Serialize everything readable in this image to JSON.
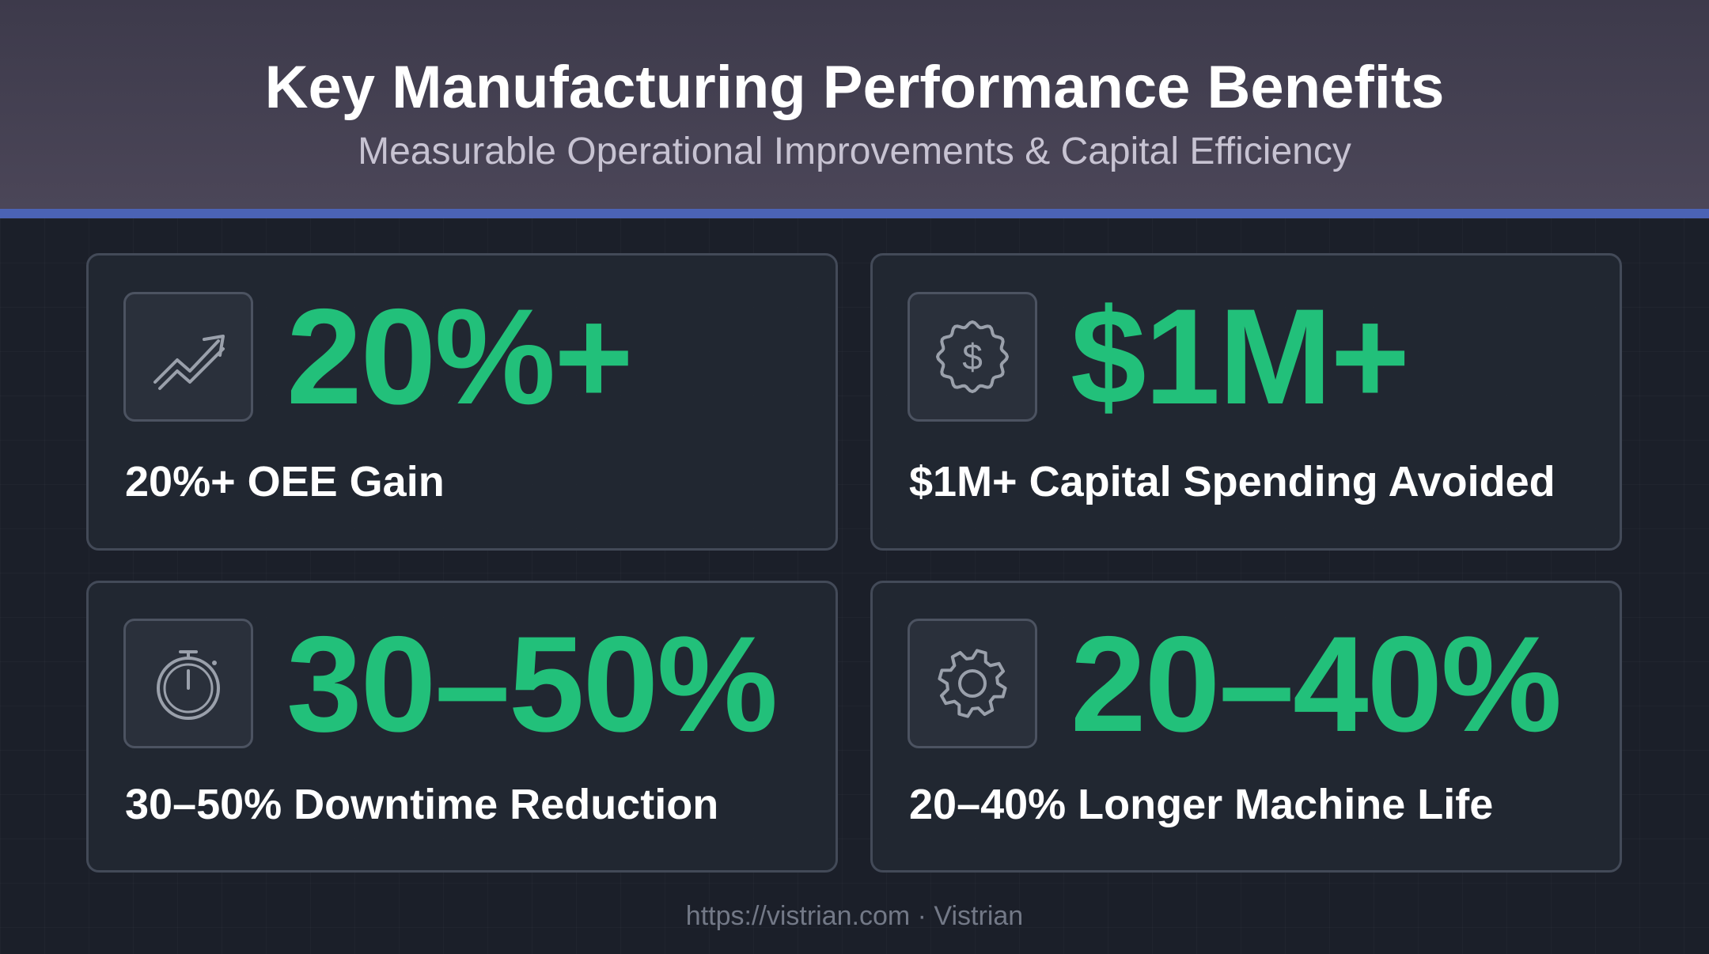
{
  "header": {
    "title": "Key Manufacturing Performance Benefits",
    "subtitle": "Measurable Operational Improvements & Capital Efficiency"
  },
  "cards": [
    {
      "icon": "trending-up-icon",
      "metric": "20%+",
      "label": "20%+ OEE Gain"
    },
    {
      "icon": "dollar-badge-icon",
      "metric": "$1M+",
      "label": "$1M+ Capital Spending Avoided"
    },
    {
      "icon": "stopwatch-icon",
      "metric": "30–50%",
      "label": "30–50% Downtime Reduction"
    },
    {
      "icon": "gear-icon",
      "metric": "20–40%",
      "label": "20–40% Longer Machine Life"
    }
  ],
  "footer": {
    "text": "https://vistrian.com · Vistrian"
  },
  "colors": {
    "accent_green": "#22c07a",
    "header_rule": "#4b63b5",
    "background": "#1b1f29"
  }
}
